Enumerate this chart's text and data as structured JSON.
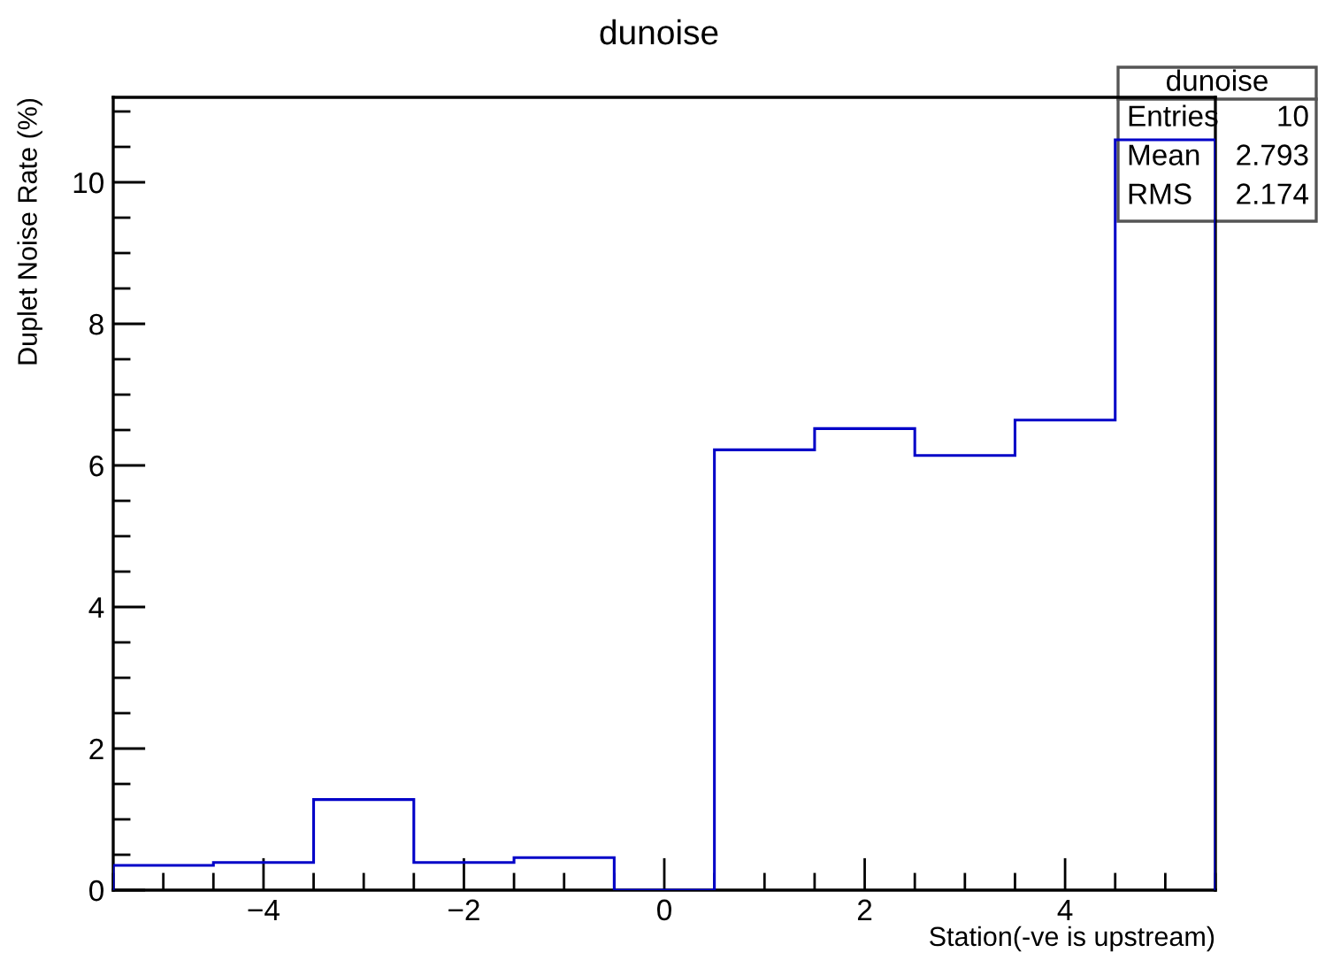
{
  "chart_data": {
    "type": "histogram",
    "title": "dunoise",
    "xlabel": "Station(-ve is upstream)",
    "ylabel": "Duplet Noise Rate (%)",
    "bins": [
      -5.5,
      -4.5,
      -3.5,
      -2.5,
      -1.5,
      -0.5,
      0.5,
      1.5,
      2.5,
      3.5,
      4.5,
      5.5
    ],
    "values": [
      0.35,
      0.39,
      1.28,
      0.39,
      0.46,
      0,
      6.22,
      6.52,
      6.14,
      6.64,
      10.6
    ],
    "color": "#0000c8",
    "xlim": [
      -5.5,
      5.5
    ],
    "xticks": [
      {
        "value": -4,
        "label": "−4"
      },
      {
        "value": -2,
        "label": "−2"
      },
      0,
      2,
      4
    ],
    "ylim": [
      0,
      11.2
    ],
    "yticks": [
      0,
      2,
      4,
      6,
      8,
      10
    ],
    "annotations": [
      "dunoise",
      "Entries",
      "10",
      "Mean",
      "2.793",
      "RMS",
      "2.174"
    ],
    "grid": false,
    "legend": false
  }
}
